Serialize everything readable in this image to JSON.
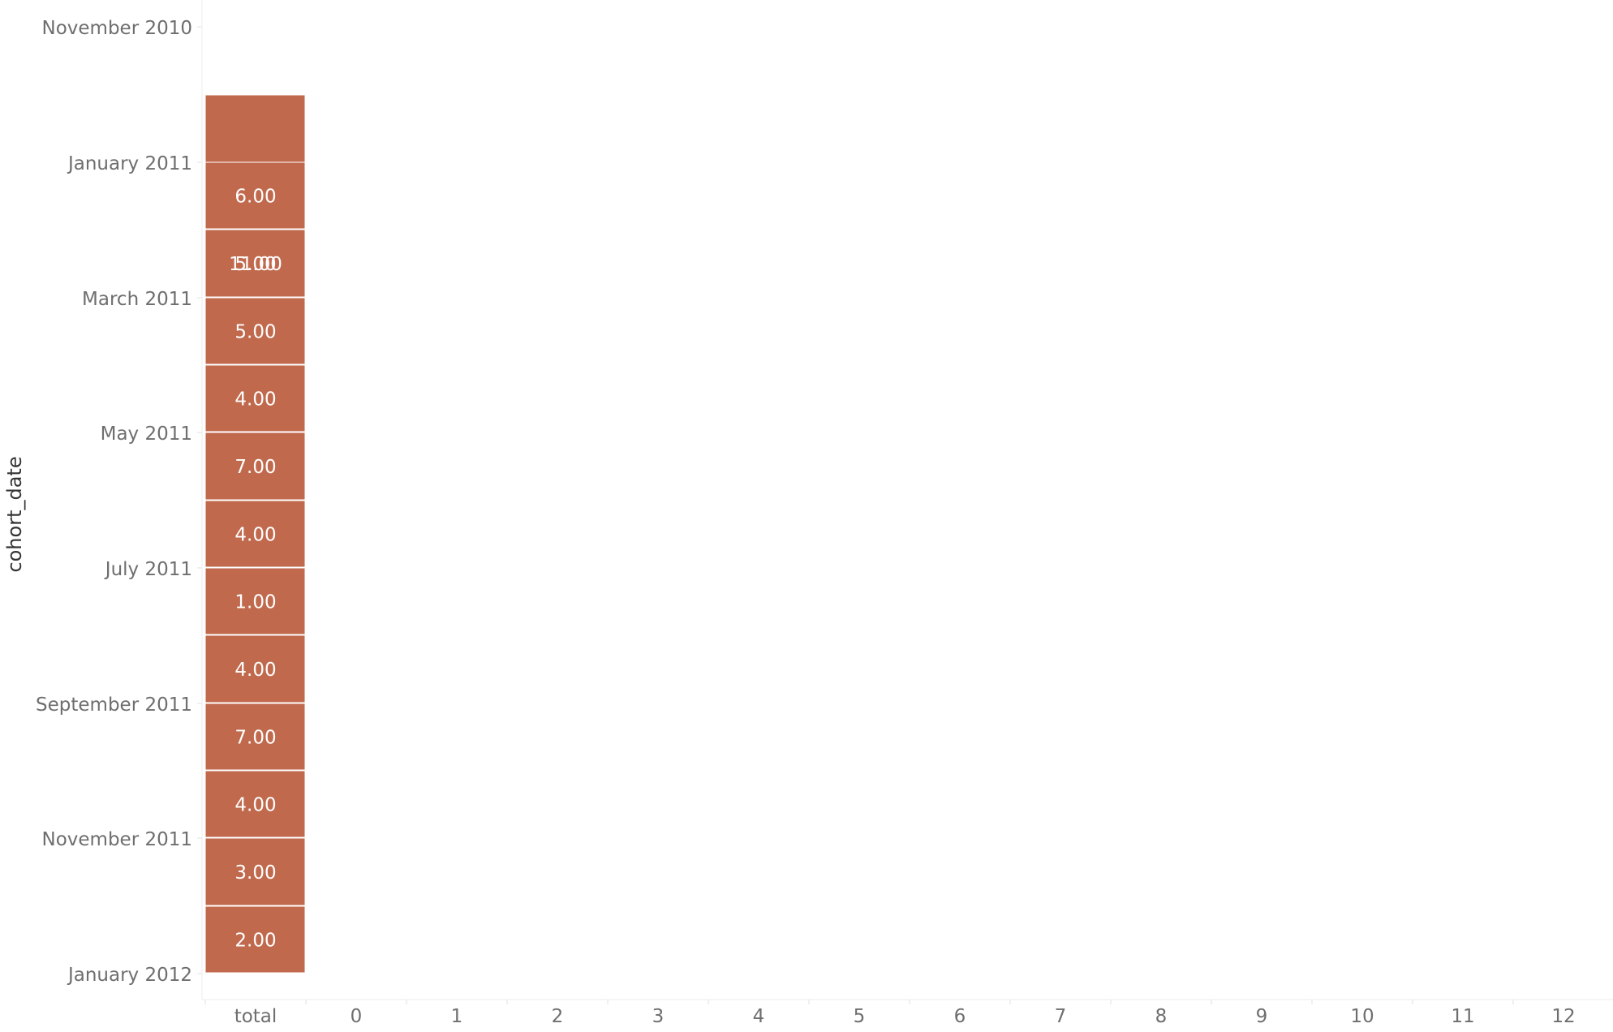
{
  "chart_data": {
    "type": "heatmap",
    "ylabel": "cohort_date",
    "y_axis_ticks": [
      "November 2010",
      "January 2011",
      "March 2011",
      "May 2011",
      "July 2011",
      "September 2011",
      "November 2011",
      "January 2012"
    ],
    "columns": [
      "total",
      "0",
      "1",
      "2",
      "3",
      "4",
      "5",
      "6",
      "7",
      "8",
      "9",
      "10",
      "11",
      "12"
    ],
    "color_categories": {
      "red": "#c0694d",
      "yellow": "#f3b94d",
      "green": "#78a160",
      "teal": "#4d9483"
    },
    "cells": [
      {
        "col": "total",
        "y": [
          2010.917,
          2011.333
        ],
        "value": "5.00",
        "color": "red"
      },
      {
        "col": "total",
        "y": [
          2011.0,
          2011.083
        ],
        "value": "6.00",
        "color": "red"
      },
      {
        "col": "total",
        "y": [
          2011.083,
          2011.167
        ],
        "value": "11.00",
        "color": "red"
      },
      {
        "col": "total",
        "y": [
          2011.167,
          2011.25
        ],
        "value": "5.00",
        "color": "red"
      },
      {
        "col": "total",
        "y": [
          2011.25,
          2011.333
        ],
        "value": "4.00",
        "color": "red"
      },
      {
        "col": "total",
        "y": [
          2011.333,
          2011.417
        ],
        "value": "7.00",
        "color": "red"
      },
      {
        "col": "total",
        "y": [
          2011.417,
          2011.5
        ],
        "value": "4.00",
        "color": "red"
      },
      {
        "col": "total",
        "y": [
          2011.5,
          2011.583
        ],
        "value": "1.00",
        "color": "red"
      },
      {
        "col": "total",
        "y": [
          2011.583,
          2011.667
        ],
        "value": "4.00",
        "color": "red"
      },
      {
        "col": "total",
        "y": [
          2011.667,
          2011.75
        ],
        "value": "7.00",
        "color": "red"
      },
      {
        "col": "total",
        "y": [
          2011.75,
          2011.833
        ],
        "value": "4.00",
        "color": "red"
      },
      {
        "col": "total",
        "y": [
          2011.833,
          2011.917
        ],
        "value": "3.00",
        "color": "red"
      },
      {
        "col": "total",
        "y": [
          2011.917,
          2012.0
        ],
        "value": "2.00",
        "color": "red"
      }
    ]
  }
}
